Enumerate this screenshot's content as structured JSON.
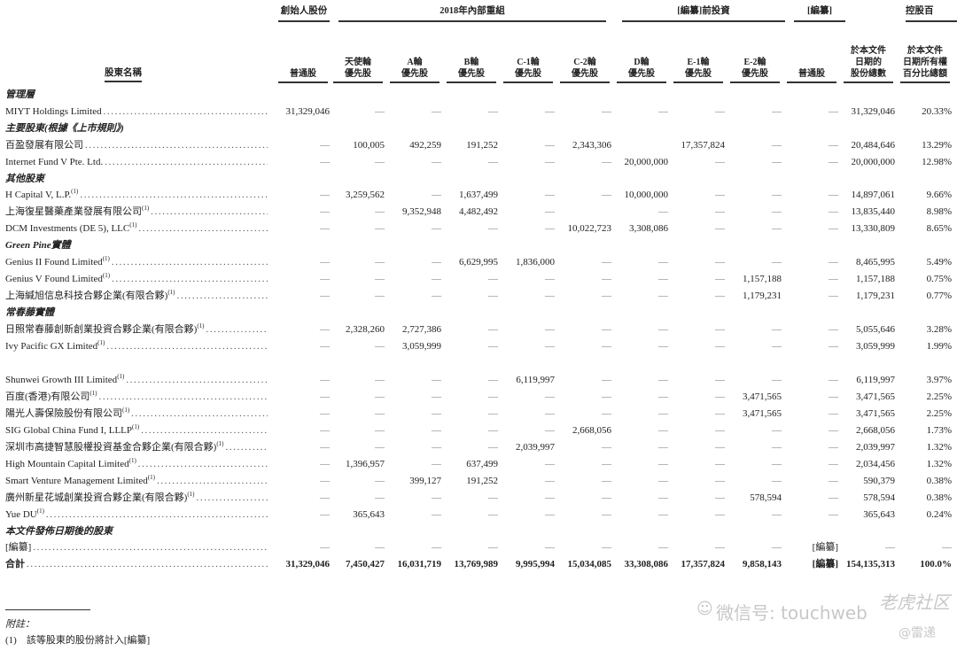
{
  "group_headers": {
    "founder": "創始人股份",
    "reorg": "2018年內部重組",
    "pre_ipo": "[編纂]前投資",
    "ipo": "[編纂]",
    "holding": "控股百"
  },
  "name_header": "股東名稱",
  "column_headers": [
    [
      "普通股"
    ],
    [
      "天使輪",
      "優先股"
    ],
    [
      "A輪",
      "優先股"
    ],
    [
      "B輪",
      "優先股"
    ],
    [
      "C-1輪",
      "優先股"
    ],
    [
      "C-2輪",
      "優先股"
    ],
    [
      "D輪",
      "優先股"
    ],
    [
      "E-1輪",
      "優先股"
    ],
    [
      "E-2輪",
      "優先股"
    ],
    [
      "普通股"
    ],
    [
      "於本文件",
      "日期的",
      "股份總數"
    ],
    [
      "於本文件",
      "日期所有權",
      "百分比總額"
    ]
  ],
  "rows": [
    {
      "section": "管理層"
    },
    {
      "name": "MIYT Holdings Limited",
      "note": "",
      "values": [
        "31,329,046",
        "—",
        "—",
        "—",
        "—",
        "—",
        "—",
        "—",
        "—",
        "—",
        "31,329,046",
        "20.33%"
      ]
    },
    {
      "section": "主要股東(根據《上市規則》)"
    },
    {
      "name": "百盈發展有限公司",
      "note": "",
      "values": [
        "—",
        "100,005",
        "492,259",
        "191,252",
        "—",
        "2,343,306",
        "",
        "17,357,824",
        "—",
        "—",
        "20,484,646",
        "13.29%"
      ]
    },
    {
      "name": "Internet Fund V Pte. Ltd.",
      "note": "",
      "values": [
        "—",
        "—",
        "—",
        "—",
        "—",
        "—",
        "20,000,000",
        "—",
        "—",
        "—",
        "20,000,000",
        "12.98%"
      ]
    },
    {
      "section": "其他股東"
    },
    {
      "name": "H Capital V, L.P.",
      "note": "(1)",
      "values": [
        "—",
        "3,259,562",
        "—",
        "1,637,499",
        "—",
        "—",
        "10,000,000",
        "—",
        "—",
        "—",
        "14,897,061",
        "9.66%"
      ]
    },
    {
      "name": "上海復星醫藥產業發展有限公司",
      "note": "(1)",
      "values": [
        "—",
        "—",
        "9,352,948",
        "4,482,492",
        "—",
        "",
        "—",
        "—",
        "—",
        "—",
        "13,835,440",
        "8.98%"
      ]
    },
    {
      "name": "DCM Investments (DE 5), LLC",
      "note": "(1)",
      "values": [
        "—",
        "—",
        "—",
        "—",
        "—",
        "10,022,723",
        "3,308,086",
        "—",
        "—",
        "—",
        "13,330,809",
        "8.65%"
      ]
    },
    {
      "section": "Green Pine實體"
    },
    {
      "name": "Genius II Found Limited",
      "note": "(1)",
      "values": [
        "—",
        "—",
        "—",
        "6,629,995",
        "1,836,000",
        "—",
        "—",
        "—",
        "—",
        "—",
        "8,465,995",
        "5.49%"
      ]
    },
    {
      "name": "Genius V Found Limited",
      "note": "(1)",
      "values": [
        "—",
        "—",
        "—",
        "—",
        "—",
        "—",
        "—",
        "—",
        "1,157,188",
        "—",
        "1,157,188",
        "0.75%"
      ]
    },
    {
      "name": "上海緘旭信息科技合夥企業(有限合夥)",
      "note": "(1)",
      "values": [
        "—",
        "—",
        "—",
        "—",
        "—",
        "—",
        "—",
        "—",
        "1,179,231",
        "—",
        "1,179,231",
        "0.77%"
      ]
    },
    {
      "section": "常春藤實體"
    },
    {
      "name": "日照常春藤創新創業投資合夥企業(有限合夥)",
      "note": "(1)",
      "values": [
        "—",
        "2,328,260",
        "2,727,386",
        "—",
        "—",
        "—",
        "—",
        "—",
        "—",
        "—",
        "5,055,646",
        "3.28%"
      ]
    },
    {
      "name": "Ivy Pacific GX Limited",
      "note": "(1)",
      "values": [
        "—",
        "—",
        "3,059,999",
        "—",
        "—",
        "—",
        "—",
        "—",
        "—",
        "—",
        "3,059,999",
        "1.99%"
      ]
    },
    {
      "gap": true
    },
    {
      "name": "Shunwei Growth III Limited",
      "note": "(1)",
      "values": [
        "—",
        "—",
        "—",
        "—",
        "6,119,997",
        "—",
        "—",
        "—",
        "—",
        "—",
        "6,119,997",
        "3.97%"
      ]
    },
    {
      "name": "百度(香港)有限公司",
      "note": "(1)",
      "values": [
        "—",
        "—",
        "—",
        "—",
        "—",
        "—",
        "—",
        "—",
        "3,471,565",
        "—",
        "3,471,565",
        "2.25%"
      ]
    },
    {
      "name": "陽光人壽保險股份有限公司",
      "note": "(1)",
      "values": [
        "—",
        "—",
        "—",
        "—",
        "—",
        "—",
        "—",
        "—",
        "3,471,565",
        "—",
        "3,471,565",
        "2.25%"
      ]
    },
    {
      "name": "SIG Global China Fund I, LLLP",
      "note": "(1)",
      "values": [
        "—",
        "—",
        "—",
        "—",
        "—",
        "2,668,056",
        "—",
        "—",
        "—",
        "—",
        "2,668,056",
        "1.73%"
      ]
    },
    {
      "name": "深圳市高捷智慧股權投資基金合夥企業(有限合夥)",
      "note": "(1)",
      "values": [
        "—",
        "—",
        "—",
        "—",
        "2,039,997",
        "—",
        "—",
        "—",
        "—",
        "—",
        "2,039,997",
        "1.32%"
      ]
    },
    {
      "name": "High Mountain Capital Limited",
      "note": "(1)",
      "values": [
        "—",
        "1,396,957",
        "—",
        "637,499",
        "—",
        "—",
        "—",
        "—",
        "—",
        "—",
        "2,034,456",
        "1.32%"
      ]
    },
    {
      "name": "Smart Venture Management Limited",
      "note": "(1)",
      "values": [
        "—",
        "—",
        "399,127",
        "191,252",
        "—",
        "—",
        "—",
        "—",
        "—",
        "—",
        "590,379",
        "0.38%"
      ]
    },
    {
      "name": "廣州新星花城創業投資合夥企業(有限合夥)",
      "note": "(1)",
      "values": [
        "—",
        "—",
        "—",
        "—",
        "—",
        "—",
        "—",
        "—",
        "578,594",
        "—",
        "578,594",
        "0.38%"
      ]
    },
    {
      "name": "Yue DU",
      "note": "(1)",
      "values": [
        "—",
        "365,643",
        "—",
        "—",
        "—",
        "—",
        "—",
        "—",
        "—",
        "—",
        "365,643",
        "0.24%"
      ]
    },
    {
      "section": "本文件發佈日期後的股東"
    },
    {
      "name": "[編纂]",
      "note": "",
      "values": [
        "—",
        "—",
        "—",
        "—",
        "—",
        "—",
        "—",
        "—",
        "—",
        "[編纂]",
        "—",
        "—"
      ]
    },
    {
      "name": "合計",
      "note": "",
      "total": true,
      "values": [
        "31,329,046",
        "7,450,427",
        "16,031,719",
        "13,769,989",
        "9,995,994",
        "15,034,085",
        "33,308,086",
        "17,357,824",
        "9,858,143",
        "[編纂]",
        "154,135,313",
        "100.0%"
      ]
    }
  ],
  "footer": {
    "notes_title": "附註：",
    "note1": "(1)　該等股東的股份將計入[編纂]"
  },
  "watermark": {
    "wechat": "微信号: touchweb",
    "community": "老虎社区",
    "author": "@雷递"
  }
}
